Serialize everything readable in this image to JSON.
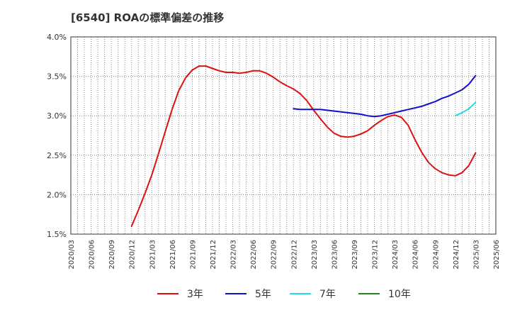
{
  "chart_data": {
    "type": "line",
    "title": "[6540]  ROAの標準偏差の推移",
    "xlabel": "",
    "ylabel": "",
    "ylim": [
      1.5,
      4.0
    ],
    "yticks": [
      "1.5%",
      "2.0%",
      "2.5%",
      "3.0%",
      "3.5%",
      "4.0%"
    ],
    "ytick_values": [
      1.5,
      2.0,
      2.5,
      3.0,
      3.5,
      4.0
    ],
    "categories": [
      "2020/03",
      "2020/06",
      "2020/09",
      "2020/12",
      "2021/03",
      "2021/06",
      "2021/09",
      "2021/12",
      "2022/03",
      "2022/06",
      "2022/09",
      "2022/12",
      "2023/03",
      "2023/06",
      "2023/09",
      "2023/12",
      "2024/03",
      "2024/06",
      "2024/09",
      "2024/12",
      "2025/03",
      "2025/06"
    ],
    "grid": true,
    "legend_position": "bottom",
    "series": [
      {
        "name": "3年",
        "color": "#dd1111",
        "points": [
          [
            "2020/12",
            1.6
          ],
          [
            "2021/01",
            1.8
          ],
          [
            "2021/02",
            2.02
          ],
          [
            "2021/03",
            2.25
          ],
          [
            "2021/04",
            2.52
          ],
          [
            "2021/05",
            2.8
          ],
          [
            "2021/06",
            3.08
          ],
          [
            "2021/07",
            3.32
          ],
          [
            "2021/08",
            3.48
          ],
          [
            "2021/09",
            3.58
          ],
          [
            "2021/10",
            3.63
          ],
          [
            "2021/11",
            3.63
          ],
          [
            "2021/12",
            3.6
          ],
          [
            "2022/01",
            3.57
          ],
          [
            "2022/02",
            3.55
          ],
          [
            "2022/03",
            3.55
          ],
          [
            "2022/04",
            3.54
          ],
          [
            "2022/05",
            3.55
          ],
          [
            "2022/06",
            3.57
          ],
          [
            "2022/07",
            3.57
          ],
          [
            "2022/08",
            3.54
          ],
          [
            "2022/09",
            3.49
          ],
          [
            "2022/10",
            3.43
          ],
          [
            "2022/11",
            3.38
          ],
          [
            "2022/12",
            3.34
          ],
          [
            "2023/01",
            3.28
          ],
          [
            "2023/02",
            3.19
          ],
          [
            "2023/03",
            3.07
          ],
          [
            "2023/04",
            2.96
          ],
          [
            "2023/05",
            2.86
          ],
          [
            "2023/06",
            2.78
          ],
          [
            "2023/07",
            2.74
          ],
          [
            "2023/08",
            2.73
          ],
          [
            "2023/09",
            2.74
          ],
          [
            "2023/10",
            2.77
          ],
          [
            "2023/11",
            2.81
          ],
          [
            "2023/12",
            2.88
          ],
          [
            "2024/01",
            2.94
          ],
          [
            "2024/02",
            2.99
          ],
          [
            "2024/03",
            3.01
          ],
          [
            "2024/04",
            2.98
          ],
          [
            "2024/05",
            2.88
          ],
          [
            "2024/06",
            2.7
          ],
          [
            "2024/07",
            2.54
          ],
          [
            "2024/08",
            2.41
          ],
          [
            "2024/09",
            2.33
          ],
          [
            "2024/10",
            2.28
          ],
          [
            "2024/11",
            2.25
          ],
          [
            "2024/12",
            2.24
          ],
          [
            "2025/01",
            2.28
          ],
          [
            "2025/02",
            2.37
          ],
          [
            "2025/03",
            2.53
          ]
        ]
      },
      {
        "name": "5年",
        "color": "#1111cc",
        "points": [
          [
            "2022/12",
            3.09
          ],
          [
            "2023/01",
            3.08
          ],
          [
            "2023/02",
            3.08
          ],
          [
            "2023/03",
            3.08
          ],
          [
            "2023/04",
            3.08
          ],
          [
            "2023/05",
            3.07
          ],
          [
            "2023/06",
            3.06
          ],
          [
            "2023/07",
            3.05
          ],
          [
            "2023/08",
            3.04
          ],
          [
            "2023/09",
            3.03
          ],
          [
            "2023/10",
            3.02
          ],
          [
            "2023/11",
            3.0
          ],
          [
            "2023/12",
            2.99
          ],
          [
            "2024/01",
            3.0
          ],
          [
            "2024/02",
            3.02
          ],
          [
            "2024/03",
            3.04
          ],
          [
            "2024/04",
            3.06
          ],
          [
            "2024/05",
            3.08
          ],
          [
            "2024/06",
            3.1
          ],
          [
            "2024/07",
            3.12
          ],
          [
            "2024/08",
            3.15
          ],
          [
            "2024/09",
            3.18
          ],
          [
            "2024/10",
            3.22
          ],
          [
            "2024/11",
            3.25
          ],
          [
            "2024/12",
            3.29
          ],
          [
            "2025/01",
            3.33
          ],
          [
            "2025/02",
            3.4
          ],
          [
            "2025/03",
            3.51
          ]
        ]
      },
      {
        "name": "7年",
        "color": "#22dddd",
        "points": [
          [
            "2024/12",
            3.0
          ],
          [
            "2025/01",
            3.04
          ],
          [
            "2025/02",
            3.09
          ],
          [
            "2025/03",
            3.17
          ]
        ]
      },
      {
        "name": "10年",
        "color": "#228822",
        "points": []
      }
    ]
  }
}
